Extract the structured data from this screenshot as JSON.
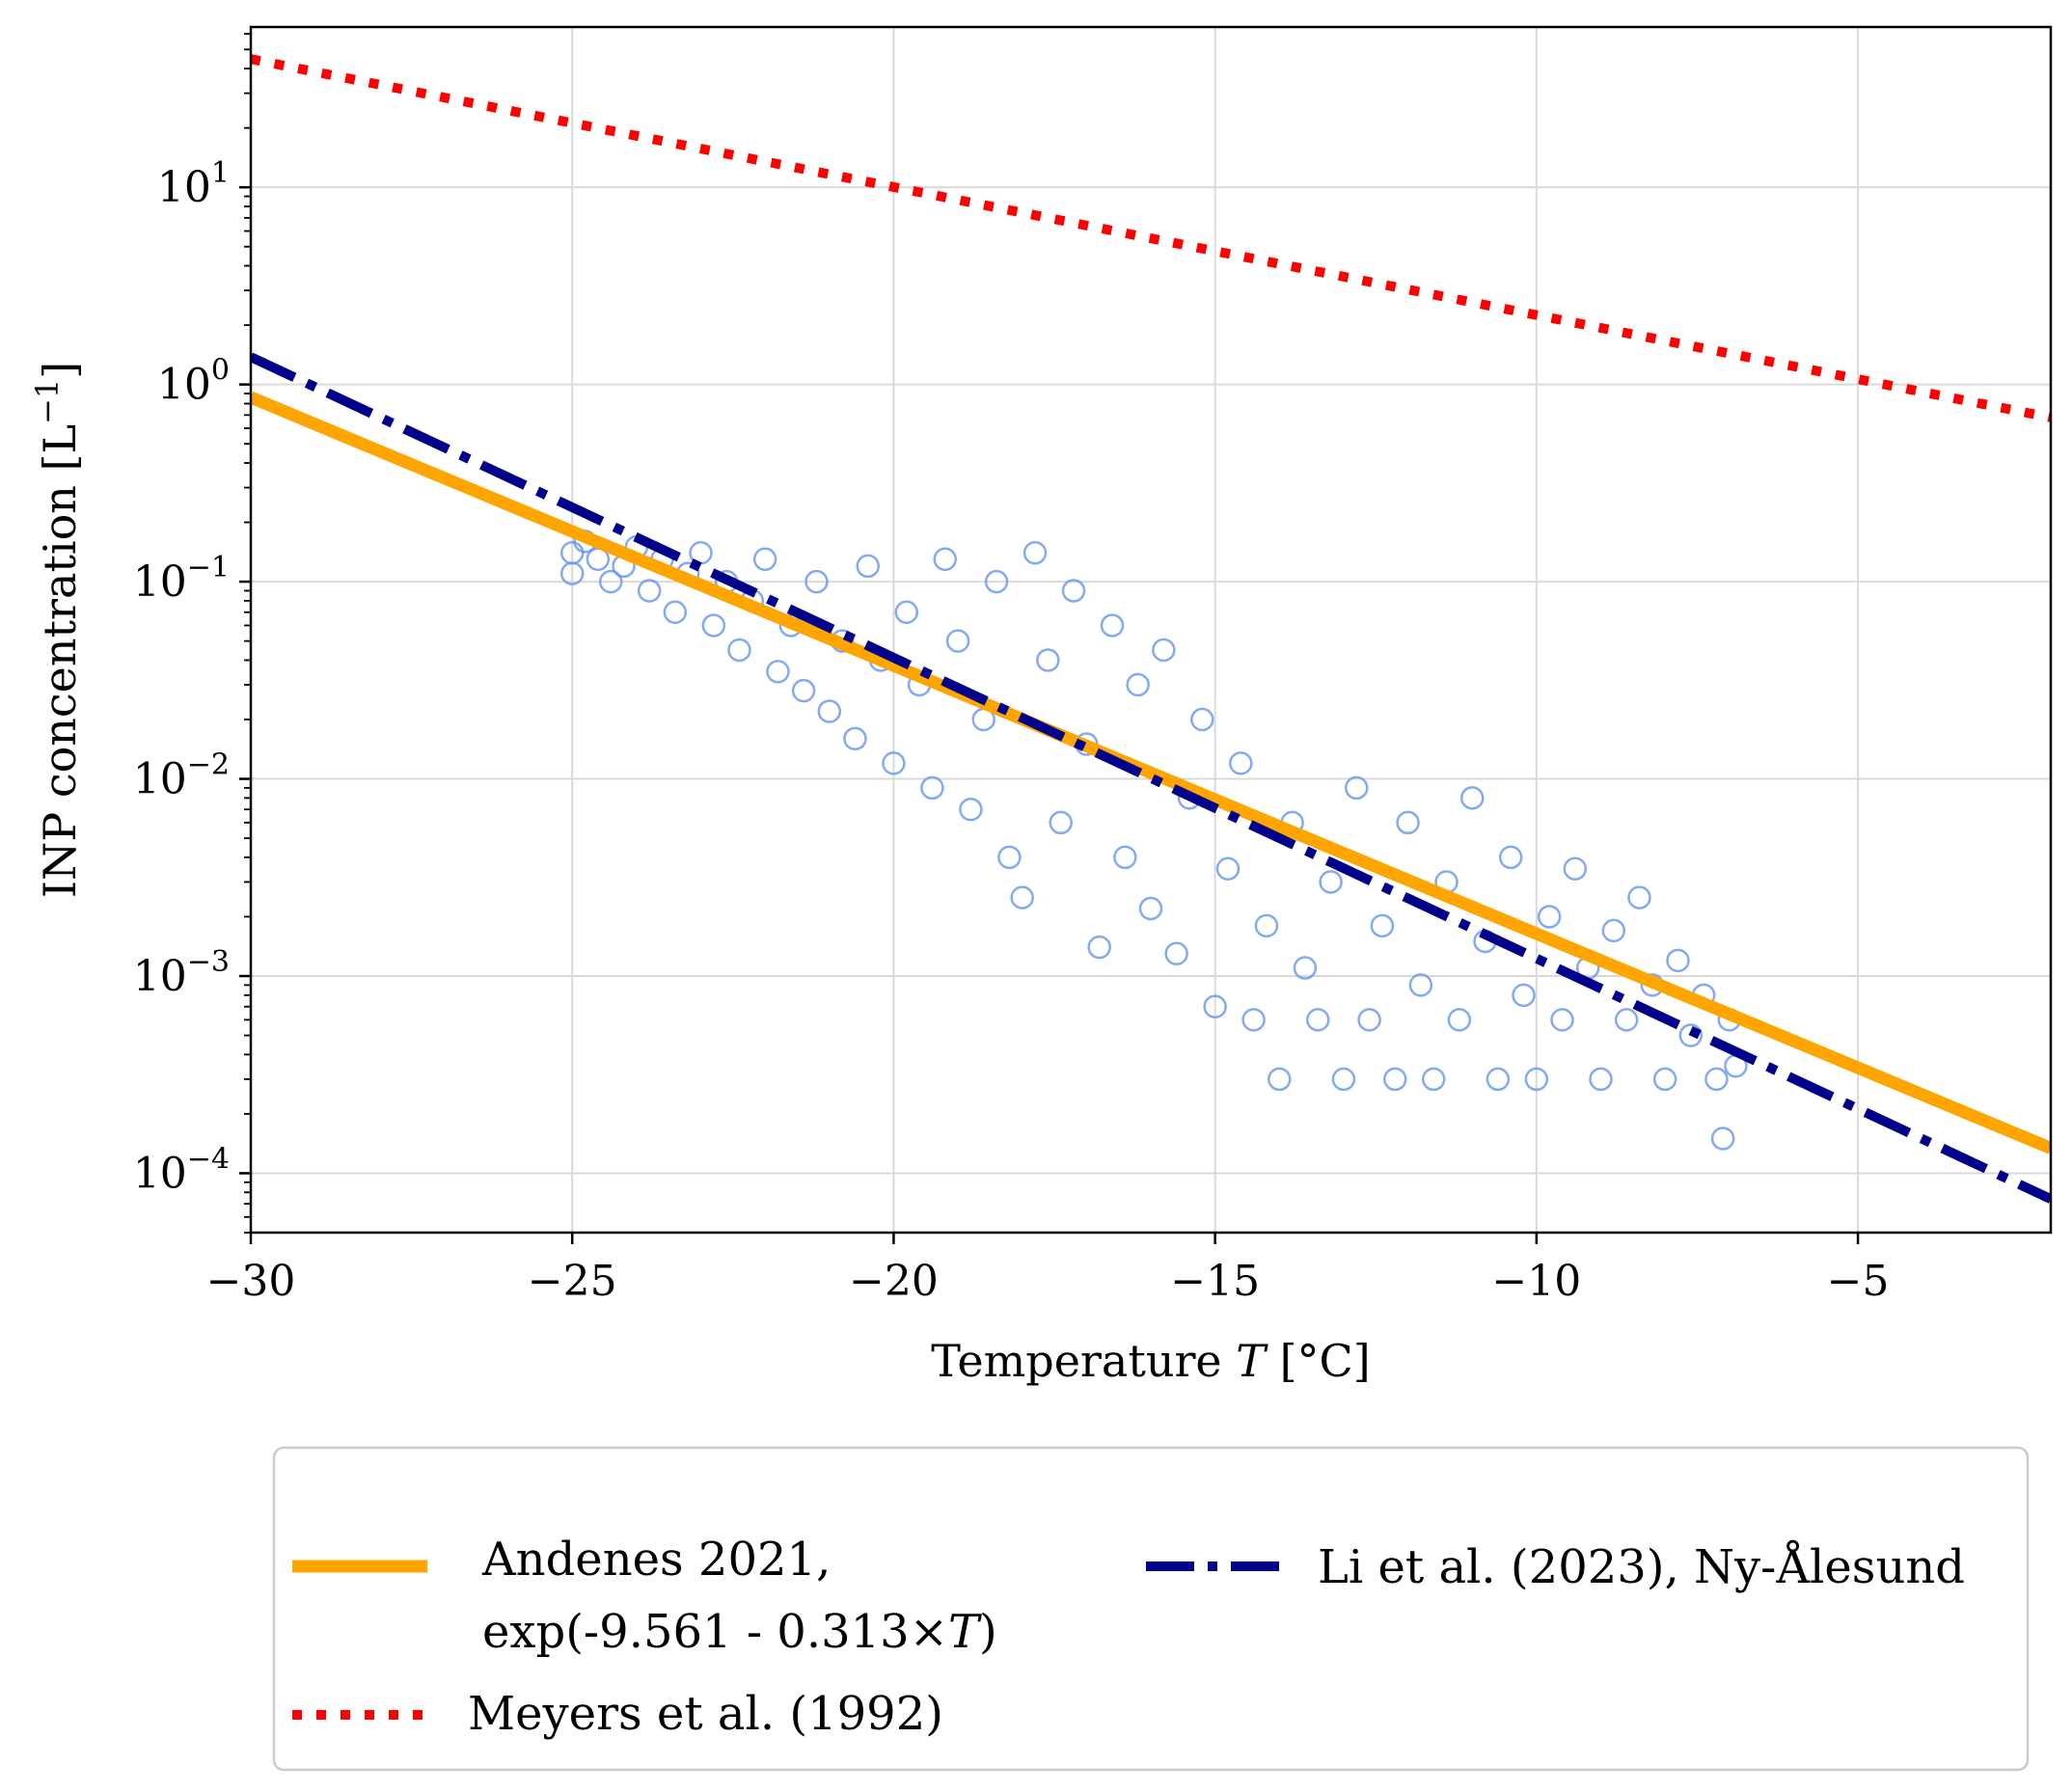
{
  "chart_data": {
    "type": "scatter",
    "title": "",
    "xlabel": "Temperature",
    "xlabel_var": "T",
    "xlabel_unit": "[°C]",
    "ylabel": "INP concentration [L",
    "ylabel_exp": "−1",
    "ylabel_close": "]",
    "x_scale": "linear",
    "y_scale": "log",
    "xlim": [
      -30,
      -2
    ],
    "ylim": [
      5e-05,
      65
    ],
    "grid": true,
    "legend_placement": "below-plot",
    "x_ticks": [
      {
        "value": -30,
        "label": "−30"
      },
      {
        "value": -25,
        "label": "−25"
      },
      {
        "value": -20,
        "label": "−20"
      },
      {
        "value": -15,
        "label": "−15"
      },
      {
        "value": -10,
        "label": "−10"
      },
      {
        "value": -5,
        "label": "−5"
      }
    ],
    "y_ticks": [
      {
        "value": 0.0001,
        "base": "10",
        "exp": "−4"
      },
      {
        "value": 0.001,
        "base": "10",
        "exp": "−3"
      },
      {
        "value": 0.01,
        "base": "10",
        "exp": "−2"
      },
      {
        "value": 0.1,
        "base": "10",
        "exp": "−1"
      },
      {
        "value": 1,
        "base": "10",
        "exp": "0"
      },
      {
        "value": 10,
        "base": "10",
        "exp": "1"
      }
    ],
    "series": [
      {
        "name_line1": "Andenes 2021,",
        "name_line2_prefix": "exp(-9.561 - 0.313×",
        "name_line2_var": "T",
        "name_line2_suffix": ")",
        "type": "line",
        "style": "solid",
        "color": "#FFA500",
        "x": [
          -30,
          -2
        ],
        "y": [
          0.86,
          0.000134
        ]
      },
      {
        "name": "Meyers et al. (1992)",
        "type": "line",
        "style": "dotted",
        "color": "#FF0000",
        "x": [
          -30,
          -2
        ],
        "y": [
          44.7,
          0.68
        ]
      },
      {
        "name": "Li et al. (2023), Ny-Ålesund",
        "type": "line",
        "style": "dashdot",
        "color": "#00008B",
        "x": [
          -30,
          -2
        ],
        "y": [
          1.38,
          7.4e-05
        ]
      },
      {
        "type": "scatter",
        "marker": "open-circle",
        "color": "#6495ED",
        "points": [
          [
            -25.0,
            0.14
          ],
          [
            -25.0,
            0.11
          ],
          [
            -24.8,
            0.16
          ],
          [
            -24.6,
            0.13
          ],
          [
            -24.4,
            0.1
          ],
          [
            -24.2,
            0.12
          ],
          [
            -24.0,
            0.15
          ],
          [
            -23.8,
            0.09
          ],
          [
            -23.6,
            0.13
          ],
          [
            -23.4,
            0.07
          ],
          [
            -23.2,
            0.11
          ],
          [
            -23.0,
            0.14
          ],
          [
            -22.8,
            0.06
          ],
          [
            -22.6,
            0.1
          ],
          [
            -22.4,
            0.045
          ],
          [
            -22.2,
            0.08
          ],
          [
            -22.0,
            0.13
          ],
          [
            -21.8,
            0.035
          ],
          [
            -21.6,
            0.06
          ],
          [
            -21.4,
            0.028
          ],
          [
            -21.2,
            0.1
          ],
          [
            -21.0,
            0.022
          ],
          [
            -20.8,
            0.05
          ],
          [
            -20.6,
            0.016
          ],
          [
            -20.4,
            0.12
          ],
          [
            -20.2,
            0.04
          ],
          [
            -20.0,
            0.012
          ],
          [
            -19.8,
            0.07
          ],
          [
            -19.6,
            0.03
          ],
          [
            -19.4,
            0.009
          ],
          [
            -19.2,
            0.13
          ],
          [
            -19.0,
            0.05
          ],
          [
            -18.8,
            0.007
          ],
          [
            -18.6,
            0.02
          ],
          [
            -18.4,
            0.1
          ],
          [
            -18.2,
            0.004
          ],
          [
            -18.0,
            0.0025
          ],
          [
            -17.8,
            0.14
          ],
          [
            -17.6,
            0.04
          ],
          [
            -17.4,
            0.006
          ],
          [
            -17.2,
            0.09
          ],
          [
            -17.0,
            0.015
          ],
          [
            -16.8,
            0.0014
          ],
          [
            -16.6,
            0.06
          ],
          [
            -16.4,
            0.004
          ],
          [
            -16.2,
            0.03
          ],
          [
            -16.0,
            0.0022
          ],
          [
            -15.8,
            0.045
          ],
          [
            -15.6,
            0.0013
          ],
          [
            -15.4,
            0.008
          ],
          [
            -15.2,
            0.02
          ],
          [
            -15.0,
            0.0007
          ],
          [
            -14.8,
            0.0035
          ],
          [
            -14.6,
            0.012
          ],
          [
            -14.4,
            0.0006
          ],
          [
            -14.2,
            0.0018
          ],
          [
            -14.0,
            0.0003
          ],
          [
            -13.8,
            0.006
          ],
          [
            -13.6,
            0.0011
          ],
          [
            -13.4,
            0.0006
          ],
          [
            -13.2,
            0.003
          ],
          [
            -13.0,
            0.0003
          ],
          [
            -12.8,
            0.009
          ],
          [
            -12.6,
            0.0006
          ],
          [
            -12.4,
            0.0018
          ],
          [
            -12.2,
            0.0003
          ],
          [
            -12.0,
            0.006
          ],
          [
            -11.8,
            0.0009
          ],
          [
            -11.6,
            0.0003
          ],
          [
            -11.4,
            0.003
          ],
          [
            -11.2,
            0.0006
          ],
          [
            -11.0,
            0.008
          ],
          [
            -10.8,
            0.0015
          ],
          [
            -10.6,
            0.0003
          ],
          [
            -10.4,
            0.004
          ],
          [
            -10.2,
            0.0008
          ],
          [
            -10.0,
            0.0003
          ],
          [
            -9.8,
            0.002
          ],
          [
            -9.6,
            0.0006
          ],
          [
            -9.4,
            0.0035
          ],
          [
            -9.2,
            0.0011
          ],
          [
            -9.0,
            0.0003
          ],
          [
            -8.8,
            0.0017
          ],
          [
            -8.6,
            0.0006
          ],
          [
            -8.4,
            0.0025
          ],
          [
            -8.2,
            0.0009
          ],
          [
            -8.0,
            0.0003
          ],
          [
            -7.8,
            0.0012
          ],
          [
            -7.6,
            0.0005
          ],
          [
            -7.4,
            0.0008
          ],
          [
            -7.2,
            0.0003
          ],
          [
            -7.0,
            0.0006
          ],
          [
            -6.9,
            0.00035
          ],
          [
            -7.1,
            0.00015
          ]
        ]
      }
    ]
  }
}
